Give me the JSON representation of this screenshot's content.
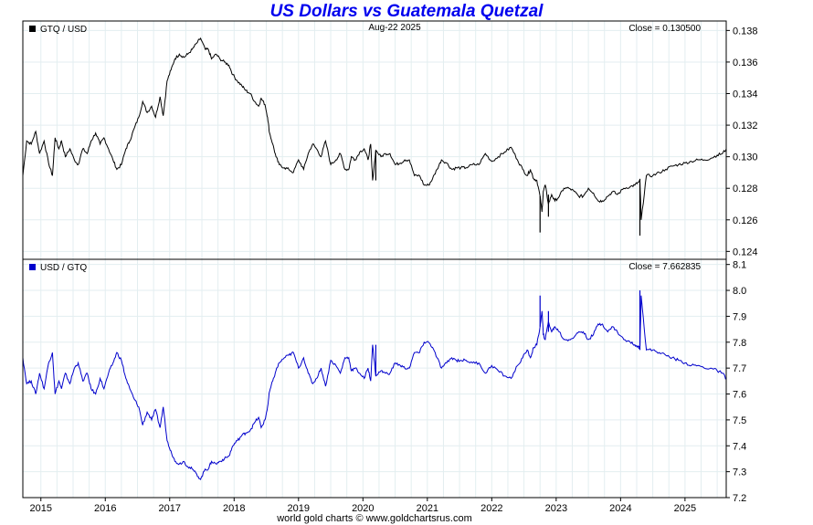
{
  "header": {
    "title": "US Dollars vs Guatemala Quetzal"
  },
  "footer": {
    "credit": "world gold charts © www.goldchartsrus.com"
  },
  "colors": {
    "top_series": "#000000",
    "bottom_series": "#0000cc",
    "grid": "#e3eef0",
    "frame": "#000000",
    "title": "#0000ee"
  },
  "chart_data": [
    {
      "type": "line",
      "panel": "top",
      "legend": "GTQ / USD",
      "date_label": "Aug-22  2025",
      "close_label": "Close = 0.130500",
      "xlim": [
        2014.72,
        2025.64
      ],
      "ylim": [
        0.1235,
        0.1386
      ],
      "yticks": [
        0.124,
        0.126,
        0.128,
        0.13,
        0.132,
        0.134,
        0.136,
        0.138
      ],
      "ytick_labels": [
        "0.124",
        "0.126",
        "0.128",
        "0.130",
        "0.132",
        "0.134",
        "0.136",
        "0.138"
      ],
      "series": [
        {
          "name": "GTQ / USD",
          "x": [
            2014.72,
            2014.78,
            2014.85,
            2014.92,
            2014.98,
            2015.05,
            2015.12,
            2015.18,
            2015.22,
            2015.28,
            2015.32,
            2015.38,
            2015.45,
            2015.52,
            2015.58,
            2015.65,
            2015.72,
            2015.78,
            2015.85,
            2015.92,
            2015.98,
            2016.05,
            2016.12,
            2016.18,
            2016.25,
            2016.32,
            2016.38,
            2016.45,
            2016.52,
            2016.58,
            2016.65,
            2016.72,
            2016.78,
            2016.85,
            2016.9,
            2016.96,
            2017.02,
            2017.08,
            2017.15,
            2017.22,
            2017.28,
            2017.35,
            2017.42,
            2017.48,
            2017.55,
            2017.6,
            2017.65,
            2017.72,
            2017.78,
            2017.85,
            2017.92,
            2017.98,
            2018.05,
            2018.12,
            2018.18,
            2018.25,
            2018.32,
            2018.38,
            2018.42,
            2018.48,
            2018.52,
            2018.55,
            2018.6,
            2018.65,
            2018.7,
            2018.78,
            2018.85,
            2018.92,
            2019.0,
            2019.08,
            2019.15,
            2019.22,
            2019.28,
            2019.35,
            2019.42,
            2019.5,
            2019.58,
            2019.65,
            2019.72,
            2019.78,
            2019.82,
            2019.88,
            2019.95,
            2020.02,
            2020.08,
            2020.12,
            2020.15,
            2020.2,
            2020.28,
            2020.35,
            2020.42,
            2020.5,
            2020.58,
            2020.65,
            2020.72,
            2020.8,
            2020.88,
            2020.95,
            2021.02,
            2021.08,
            2021.15,
            2021.22,
            2021.3,
            2021.38,
            2021.45,
            2021.52,
            2021.6,
            2021.7,
            2021.8,
            2021.9,
            2022.0,
            2022.1,
            2022.2,
            2022.3,
            2022.4,
            2022.48,
            2022.55,
            2022.6,
            2022.65,
            2022.7,
            2022.75,
            2022.78,
            2022.8,
            2022.83,
            2022.88,
            2022.93,
            2022.98,
            2023.05,
            2023.12,
            2023.2,
            2023.28,
            2023.35,
            2023.42,
            2023.5,
            2023.58,
            2023.65,
            2023.72,
            2023.8,
            2023.88,
            2023.95,
            2024.05,
            2024.15,
            2024.22,
            2024.28,
            2024.3,
            2024.32,
            2024.4,
            2024.5,
            2024.6,
            2024.7,
            2024.8,
            2024.9,
            2025.0,
            2025.1,
            2025.2,
            2025.3,
            2025.4,
            2025.5,
            2025.58,
            2025.64
          ],
          "y": [
            0.1288,
            0.131,
            0.1308,
            0.1316,
            0.1302,
            0.131,
            0.1296,
            0.1288,
            0.1312,
            0.1305,
            0.131,
            0.13,
            0.1305,
            0.1298,
            0.1295,
            0.1305,
            0.1302,
            0.131,
            0.1315,
            0.1308,
            0.1312,
            0.1305,
            0.1298,
            0.1292,
            0.1295,
            0.1305,
            0.131,
            0.1318,
            0.1325,
            0.1335,
            0.1328,
            0.1332,
            0.1325,
            0.1338,
            0.1326,
            0.1348,
            0.1355,
            0.1362,
            0.1365,
            0.1363,
            0.1365,
            0.1368,
            0.1372,
            0.1375,
            0.1368,
            0.1368,
            0.1362,
            0.1365,
            0.1362,
            0.136,
            0.1358,
            0.1352,
            0.1348,
            0.1345,
            0.1342,
            0.134,
            0.1335,
            0.1332,
            0.1337,
            0.1333,
            0.1325,
            0.1315,
            0.1308,
            0.13,
            0.1295,
            0.1293,
            0.1292,
            0.129,
            0.1298,
            0.1292,
            0.1302,
            0.1308,
            0.1305,
            0.13,
            0.131,
            0.1295,
            0.1298,
            0.1302,
            0.1292,
            0.1292,
            0.13,
            0.1298,
            0.1303,
            0.1305,
            0.1298,
            0.1308,
            0.1285,
            0.1304,
            0.13,
            0.1302,
            0.1302,
            0.1295,
            0.1296,
            0.1298,
            0.1298,
            0.1288,
            0.1288,
            0.1282,
            0.1282,
            0.1286,
            0.1292,
            0.1298,
            0.1296,
            0.1292,
            0.1293,
            0.1293,
            0.1293,
            0.1295,
            0.1295,
            0.1302,
            0.1297,
            0.13,
            0.1303,
            0.1306,
            0.1298,
            0.1292,
            0.1288,
            0.1292,
            0.1286,
            0.1285,
            0.1275,
            0.1265,
            0.1278,
            0.1282,
            0.127,
            0.1276,
            0.1272,
            0.1275,
            0.128,
            0.128,
            0.1278,
            0.1275,
            0.1275,
            0.128,
            0.1277,
            0.1272,
            0.1272,
            0.1275,
            0.1278,
            0.1276,
            0.128,
            0.1281,
            0.1282,
            0.1284,
            0.1284,
            0.126,
            0.1288,
            0.1288,
            0.129,
            0.1292,
            0.1294,
            0.1295,
            0.1296,
            0.1297,
            0.1298,
            0.1298,
            0.1299,
            0.1301,
            0.1302,
            0.1305
          ]
        }
      ],
      "spikes": [
        {
          "x": 2020.2,
          "y_from": 0.1304,
          "y_to": 0.1285
        },
        {
          "x": 2022.75,
          "y_from": 0.1275,
          "y_to": 0.1252
        },
        {
          "x": 2022.88,
          "y_from": 0.1276,
          "y_to": 0.1262
        },
        {
          "x": 2024.3,
          "y_from": 0.1286,
          "y_to": 0.125
        }
      ]
    },
    {
      "type": "line",
      "panel": "bottom",
      "legend": "USD / GTQ",
      "close_label": "Close = 7.662835",
      "xlim": [
        2014.72,
        2025.64
      ],
      "ylim": [
        7.2,
        8.12
      ],
      "yticks": [
        7.2,
        7.3,
        7.4,
        7.5,
        7.6,
        7.7,
        7.8,
        7.9,
        8.0,
        8.1
      ],
      "ytick_labels": [
        "7.2",
        "7.3",
        "7.4",
        "7.5",
        "7.6",
        "7.7",
        "7.8",
        "7.9",
        "8.0",
        "8.1"
      ],
      "xticks": [
        2015,
        2016,
        2017,
        2018,
        2019,
        2020,
        2021,
        2022,
        2023,
        2024,
        2025
      ],
      "xtick_labels": [
        "2015",
        "2016",
        "2017",
        "2018",
        "2019",
        "2020",
        "2021",
        "2022",
        "2023",
        "2024",
        "2025"
      ],
      "series": [
        {
          "name": "USD / GTQ",
          "x": [
            2014.72,
            2014.78,
            2014.85,
            2014.92,
            2014.98,
            2015.05,
            2015.12,
            2015.18,
            2015.22,
            2015.28,
            2015.32,
            2015.38,
            2015.45,
            2015.52,
            2015.58,
            2015.65,
            2015.72,
            2015.78,
            2015.85,
            2015.92,
            2015.98,
            2016.05,
            2016.12,
            2016.18,
            2016.25,
            2016.32,
            2016.38,
            2016.45,
            2016.52,
            2016.58,
            2016.65,
            2016.72,
            2016.78,
            2016.85,
            2016.9,
            2016.96,
            2017.02,
            2017.08,
            2017.15,
            2017.22,
            2017.28,
            2017.35,
            2017.42,
            2017.48,
            2017.55,
            2017.6,
            2017.65,
            2017.72,
            2017.78,
            2017.85,
            2017.92,
            2017.98,
            2018.05,
            2018.12,
            2018.18,
            2018.25,
            2018.32,
            2018.38,
            2018.42,
            2018.48,
            2018.52,
            2018.55,
            2018.6,
            2018.65,
            2018.7,
            2018.78,
            2018.85,
            2018.92,
            2019.0,
            2019.08,
            2019.15,
            2019.22,
            2019.28,
            2019.35,
            2019.42,
            2019.5,
            2019.58,
            2019.65,
            2019.72,
            2019.78,
            2019.82,
            2019.88,
            2019.95,
            2020.02,
            2020.08,
            2020.12,
            2020.15,
            2020.2,
            2020.28,
            2020.35,
            2020.42,
            2020.5,
            2020.58,
            2020.65,
            2020.72,
            2020.8,
            2020.88,
            2020.95,
            2021.02,
            2021.08,
            2021.15,
            2021.22,
            2021.3,
            2021.38,
            2021.45,
            2021.52,
            2021.6,
            2021.7,
            2021.8,
            2021.9,
            2022.0,
            2022.1,
            2022.2,
            2022.3,
            2022.4,
            2022.48,
            2022.55,
            2022.6,
            2022.65,
            2022.7,
            2022.75,
            2022.78,
            2022.8,
            2022.83,
            2022.88,
            2022.93,
            2022.98,
            2023.05,
            2023.12,
            2023.2,
            2023.28,
            2023.35,
            2023.42,
            2023.5,
            2023.58,
            2023.65,
            2023.72,
            2023.8,
            2023.88,
            2023.95,
            2024.05,
            2024.15,
            2024.22,
            2024.28,
            2024.3,
            2024.32,
            2024.4,
            2024.5,
            2024.6,
            2024.7,
            2024.8,
            2024.9,
            2025.0,
            2025.1,
            2025.2,
            2025.3,
            2025.4,
            2025.5,
            2025.58,
            2025.64
          ],
          "y": [
            7.74,
            7.64,
            7.65,
            7.6,
            7.68,
            7.62,
            7.72,
            7.76,
            7.6,
            7.65,
            7.62,
            7.68,
            7.64,
            7.7,
            7.72,
            7.65,
            7.68,
            7.62,
            7.6,
            7.66,
            7.62,
            7.68,
            7.72,
            7.76,
            7.73,
            7.66,
            7.62,
            7.58,
            7.55,
            7.48,
            7.53,
            7.5,
            7.54,
            7.47,
            7.55,
            7.42,
            7.38,
            7.34,
            7.33,
            7.34,
            7.32,
            7.31,
            7.29,
            7.27,
            7.31,
            7.31,
            7.34,
            7.33,
            7.34,
            7.35,
            7.36,
            7.4,
            7.42,
            7.44,
            7.45,
            7.46,
            7.49,
            7.51,
            7.47,
            7.5,
            7.55,
            7.61,
            7.65,
            7.69,
            7.72,
            7.74,
            7.75,
            7.76,
            7.7,
            7.74,
            7.68,
            7.64,
            7.66,
            7.7,
            7.63,
            7.73,
            7.71,
            7.68,
            7.74,
            7.74,
            7.69,
            7.7,
            7.68,
            7.66,
            7.7,
            7.65,
            7.79,
            7.67,
            7.69,
            7.68,
            7.68,
            7.72,
            7.71,
            7.7,
            7.7,
            7.76,
            7.76,
            7.8,
            7.8,
            7.78,
            7.74,
            7.7,
            7.72,
            7.74,
            7.73,
            7.73,
            7.73,
            7.72,
            7.72,
            7.68,
            7.71,
            7.69,
            7.67,
            7.66,
            7.71,
            7.74,
            7.77,
            7.74,
            7.78,
            7.79,
            7.86,
            7.92,
            7.83,
            7.81,
            7.88,
            7.84,
            7.86,
            7.84,
            7.81,
            7.81,
            7.82,
            7.84,
            7.84,
            7.81,
            7.83,
            7.87,
            7.87,
            7.84,
            7.86,
            7.84,
            7.81,
            7.8,
            7.79,
            7.78,
            7.78,
            7.98,
            7.77,
            7.77,
            7.76,
            7.75,
            7.74,
            7.73,
            7.72,
            7.71,
            7.71,
            7.7,
            7.7,
            7.69,
            7.68,
            7.66
          ]
        }
      ],
      "spikes": [
        {
          "x": 2020.2,
          "y_from": 7.67,
          "y_to": 7.79
        },
        {
          "x": 2022.75,
          "y_from": 7.86,
          "y_to": 7.98
        },
        {
          "x": 2022.88,
          "y_from": 7.84,
          "y_to": 7.92
        },
        {
          "x": 2024.3,
          "y_from": 7.77,
          "y_to": 8.0
        }
      ]
    }
  ]
}
